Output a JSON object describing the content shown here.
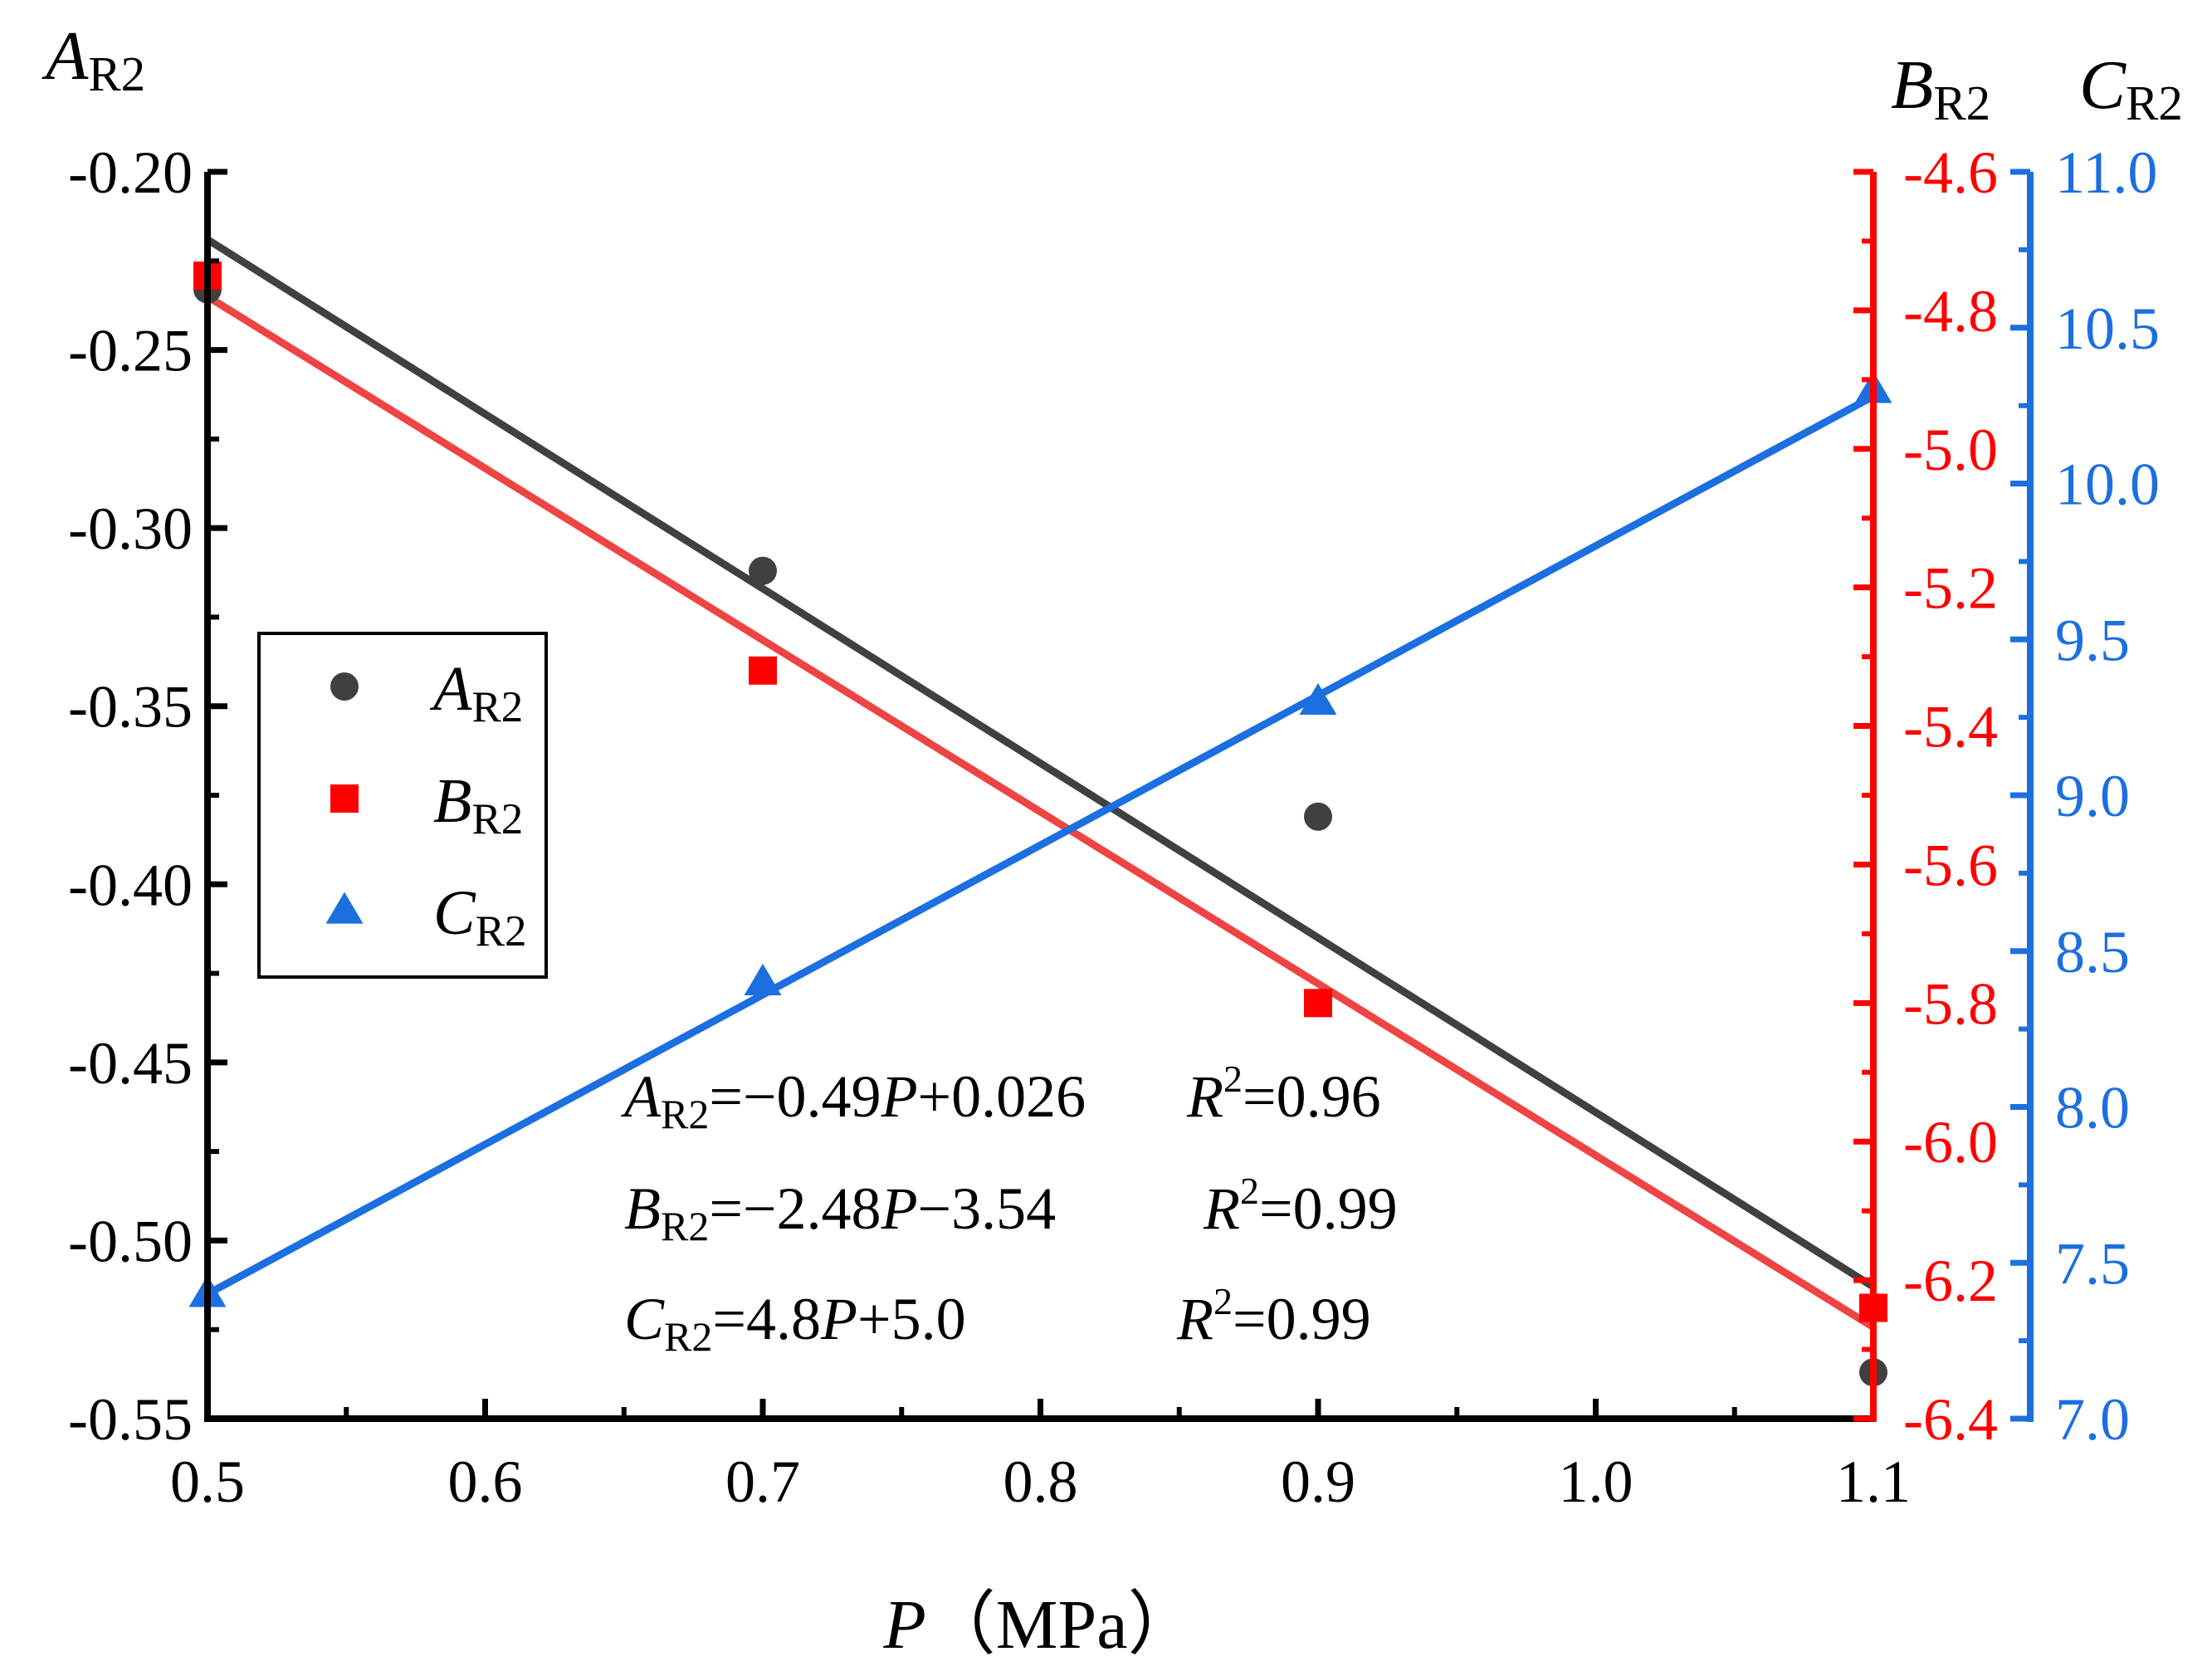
{
  "chart_data": {
    "type": "scatter",
    "x_label": "P",
    "x_unit": "（MPa）",
    "x_range": [
      0.5,
      1.1
    ],
    "x_ticks": [
      "0.5",
      "0.6",
      "0.7",
      "0.8",
      "0.9",
      "1.0",
      "1.1"
    ],
    "axes": {
      "A": {
        "title_main": "A",
        "title_sub": "R2",
        "range": [
          -0.55,
          -0.2
        ],
        "ticks": [
          "-0.20",
          "-0.25",
          "-0.30",
          "-0.35",
          "-0.40",
          "-0.45",
          "-0.50",
          "-0.55"
        ],
        "color": "#000000"
      },
      "B": {
        "title_main": "B",
        "title_sub": "R2",
        "range": [
          -6.4,
          -4.6
        ],
        "ticks": [
          "-4.6",
          "-4.8",
          "-5.0",
          "-5.2",
          "-5.4",
          "-5.6",
          "-5.8",
          "-6.0",
          "-6.2",
          "-6.4"
        ],
        "color": "#ff0000"
      },
      "C": {
        "title_main": "C",
        "title_sub": "R2",
        "range": [
          7.0,
          11.0
        ],
        "ticks": [
          "11.0",
          "10.5",
          "10.0",
          "9.5",
          "9.0",
          "8.5",
          "8.0",
          "7.5",
          "7.0"
        ],
        "color": "#1c6fdf"
      }
    },
    "series": [
      {
        "key": "A",
        "name_main": "A",
        "name_sub": "R2",
        "axis": "A",
        "marker": "circle",
        "color": "#404040",
        "x": [
          0.5,
          0.7,
          0.9,
          1.1
        ],
        "y": [
          -0.233,
          -0.312,
          -0.381,
          -0.537
        ],
        "fit": {
          "slope": -0.49,
          "intercept": 0.026
        }
      },
      {
        "key": "B",
        "name_main": "B",
        "name_sub": "R2",
        "axis": "B",
        "marker": "square",
        "color": "#ff0000",
        "x": [
          0.5,
          0.7,
          0.9,
          1.1
        ],
        "y": [
          -4.75,
          -5.32,
          -5.8,
          -6.24
        ],
        "fit": {
          "slope": -2.48,
          "intercept": -3.54
        }
      },
      {
        "key": "C",
        "name_main": "C",
        "name_sub": "R2",
        "axis": "C",
        "marker": "triangle",
        "color": "#1c6fdf",
        "x": [
          0.5,
          0.7,
          0.9,
          1.1
        ],
        "y": [
          7.4,
          8.4,
          9.3,
          10.3
        ],
        "fit": {
          "slope": 4.8,
          "intercept": 5.0
        }
      }
    ],
    "equations": [
      {
        "lhs_main": "A",
        "lhs_sub": "R2",
        "rhs": [
          "=−0.49",
          "P",
          "+0.026"
        ],
        "r2_label": "R",
        "r2_sup": "2",
        "r2_value": "=0.96"
      },
      {
        "lhs_main": "B",
        "lhs_sub": "R2",
        "rhs": [
          "=−2.48",
          "P",
          "−3.54"
        ],
        "r2_label": "R",
        "r2_sup": "2",
        "r2_value": "=0.99"
      },
      {
        "lhs_main": "C",
        "lhs_sub": "R2",
        "rhs": [
          "=4.8",
          "P",
          "+5.0"
        ],
        "r2_label": "R",
        "r2_sup": "2",
        "r2_value": "=0.99"
      }
    ],
    "legend_position": "left-middle",
    "fit_line_colors": {
      "A": "#404040",
      "B": "#ee4444",
      "C": "#1c6fdf"
    }
  }
}
